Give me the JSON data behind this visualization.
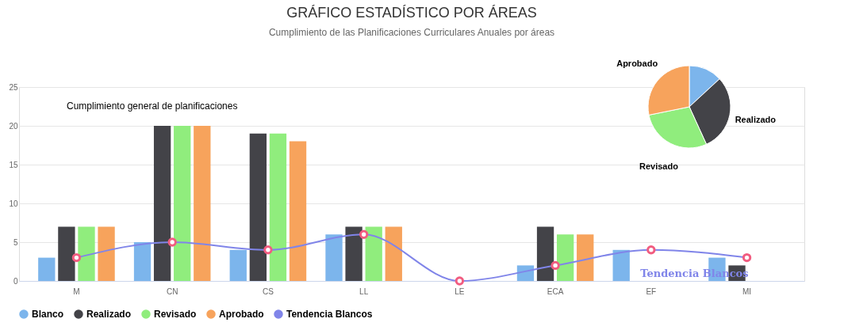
{
  "chart_data": [
    {
      "type": "bar",
      "title": "GRÁFICO ESTADÍSTICO POR ÁREAS",
      "subtitle": "Cumplimiento de las Planificaciones Curriculares Anuales por áreas",
      "categories": [
        "M",
        "CN",
        "CS",
        "LL",
        "LE",
        "ECA",
        "EF",
        "MI"
      ],
      "series": [
        {
          "name": "Blanco",
          "color": "#7cb5ec",
          "values": [
            3,
            5,
            4,
            6,
            0,
            2,
            4,
            3
          ]
        },
        {
          "name": "Realizado",
          "color": "#434348",
          "values": [
            7,
            20,
            19,
            7,
            0,
            7,
            0,
            2
          ]
        },
        {
          "name": "Revisado",
          "color": "#90ed7d",
          "values": [
            7,
            20,
            19,
            7,
            0,
            6,
            0,
            0
          ]
        },
        {
          "name": "Aprobado",
          "color": "#f7a35c",
          "values": [
            7,
            20,
            18,
            7,
            0,
            6,
            0,
            0
          ]
        },
        {
          "name": "Tendencia Blancos",
          "type": "line",
          "color": "#8085e9",
          "marker": "circle",
          "line_style": "solid",
          "values": [
            3,
            5,
            4,
            6,
            0,
            2,
            4,
            3
          ]
        }
      ],
      "ylim": [
        0,
        25
      ],
      "yticks": [
        0,
        5,
        10,
        15,
        20,
        25
      ],
      "grid": "y",
      "legend": "bottom",
      "annotations": [
        "Cumplimiento general de planificaciones"
      ]
    },
    {
      "type": "pie",
      "categories": [
        null,
        "Realizado",
        "Revisado",
        "Aprobado"
      ],
      "values": [
        13.1,
        30.1,
        28.6,
        28.2
      ],
      "colors": [
        "#7cb5ec",
        "#434348",
        "#90ed7d",
        "#f7a35c"
      ]
    }
  ]
}
